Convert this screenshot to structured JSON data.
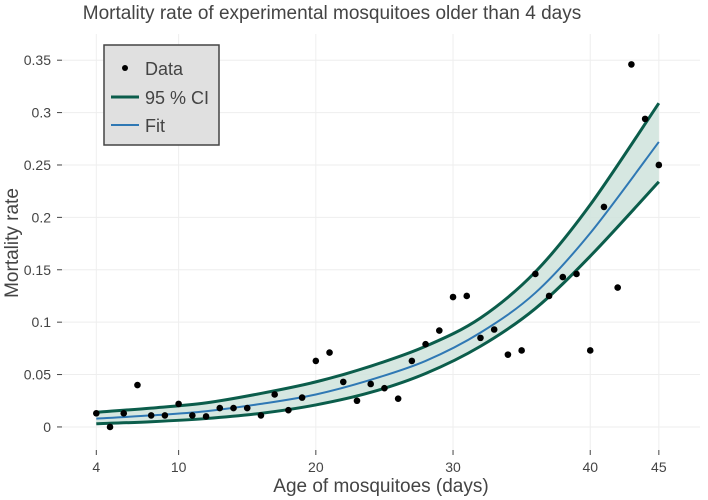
{
  "chart_data": {
    "type": "scatter",
    "title": "Mortality rate of experimental mosquitoes older than 4 days",
    "xlabel": "Age of mosquitoes (days)",
    "ylabel": "Mortality rate",
    "x_ticks": [
      4,
      10,
      20,
      30,
      40,
      45
    ],
    "y_ticks": [
      0,
      0.05,
      0.1,
      0.15,
      0.2,
      0.25,
      0.3,
      0.35
    ],
    "y_tick_labels": [
      "0",
      "0.05",
      "0.1",
      "0.15",
      "0.2",
      "0.25",
      "0.3",
      "0.35"
    ],
    "xlim": [
      1.5,
      48
    ],
    "ylim": [
      -0.022,
      0.375
    ],
    "grid": true,
    "legend_position": "top-left",
    "series": [
      {
        "name": "Data",
        "kind": "markers",
        "color": "#000000",
        "x": [
          4,
          5,
          6,
          7,
          8,
          9,
          10,
          11,
          12,
          13,
          14,
          15,
          16,
          17,
          18,
          19,
          20,
          21,
          22,
          23,
          24,
          25,
          26,
          27,
          28,
          29,
          30,
          31,
          32,
          33,
          34,
          35,
          36,
          37,
          38,
          39,
          40,
          41,
          42,
          43,
          44,
          45
        ],
        "y": [
          0.013,
          0.0,
          0.013,
          0.04,
          0.011,
          0.011,
          0.022,
          0.011,
          0.01,
          0.018,
          0.018,
          0.018,
          0.011,
          0.031,
          0.016,
          0.028,
          0.063,
          0.071,
          0.043,
          0.025,
          0.041,
          0.037,
          0.027,
          0.063,
          0.079,
          0.092,
          0.124,
          0.125,
          0.085,
          0.093,
          0.069,
          0.073,
          0.146,
          0.125,
          0.143,
          0.146,
          0.073,
          0.21,
          0.133,
          0.346,
          0.294,
          0.25
        ]
      },
      {
        "name": "95 % CI",
        "kind": "band",
        "color": "#0b5d4b",
        "fill": "#cfe3dc",
        "x": [
          4,
          8,
          12,
          16,
          20,
          24,
          28,
          32,
          36,
          40,
          45
        ],
        "upper": [
          0.014,
          0.018,
          0.023,
          0.032,
          0.043,
          0.058,
          0.077,
          0.104,
          0.148,
          0.212,
          0.309
        ],
        "lower": [
          0.003,
          0.005,
          0.008,
          0.013,
          0.021,
          0.033,
          0.051,
          0.077,
          0.113,
          0.163,
          0.234
        ]
      },
      {
        "name": "Fit",
        "kind": "line",
        "color": "#2f78b4",
        "x": [
          4,
          8,
          12,
          16,
          20,
          24,
          28,
          32,
          36,
          40,
          45
        ],
        "y": [
          0.008,
          0.011,
          0.015,
          0.022,
          0.031,
          0.045,
          0.063,
          0.09,
          0.128,
          0.185,
          0.272
        ]
      }
    ]
  }
}
